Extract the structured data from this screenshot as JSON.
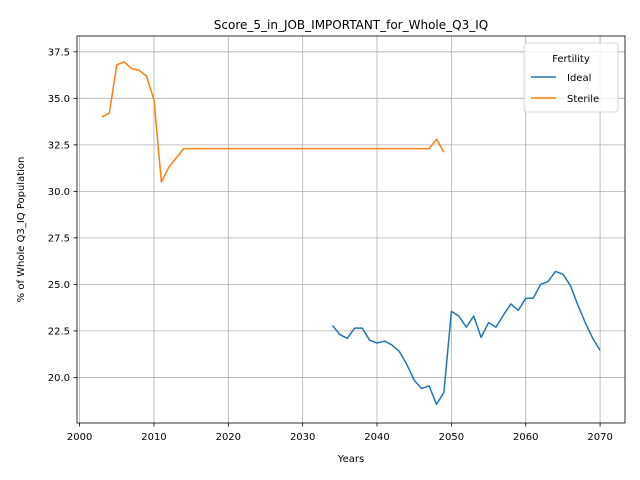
{
  "chart_data": {
    "type": "line",
    "title": "Score_5_in_JOB_IMPORTANT_for_Whole_Q3_IQ",
    "xlabel": "Years",
    "ylabel": "% of Whole Q3_IQ Population",
    "xlim": [
      1999.65,
      2073.35
    ],
    "ylim": [
      17.55,
      38.35
    ],
    "xticks": [
      2000,
      2010,
      2020,
      2030,
      2040,
      2050,
      2060,
      2070
    ],
    "xtick_labels": [
      "2000",
      "2010",
      "2020",
      "2030",
      "2040",
      "2050",
      "2060",
      "2070"
    ],
    "yticks": [
      20.0,
      22.5,
      25.0,
      27.5,
      30.0,
      32.5,
      35.0,
      37.5
    ],
    "ytick_labels": [
      "20.0",
      "22.5",
      "25.0",
      "27.5",
      "30.0",
      "32.5",
      "35.0",
      "37.5"
    ],
    "grid": true,
    "legend": {
      "title": "Fertility",
      "placement": "top-right"
    },
    "series": [
      {
        "name": "Ideal",
        "color": "#1f77b4",
        "x": [
          2034,
          2035,
          2036,
          2037,
          2038,
          2039,
          2040,
          2041,
          2042,
          2043,
          2044,
          2045,
          2046,
          2047,
          2048,
          2049,
          2050,
          2051,
          2052,
          2053,
          2054,
          2055,
          2056,
          2057,
          2058,
          2059,
          2060,
          2061,
          2062,
          2063,
          2064,
          2065,
          2066,
          2067,
          2068,
          2069,
          2070
        ],
        "y": [
          22.8,
          22.3,
          22.1,
          22.65,
          22.65,
          22.0,
          21.85,
          21.95,
          21.75,
          21.4,
          20.7,
          19.85,
          19.4,
          19.55,
          18.55,
          19.2,
          23.55,
          23.3,
          22.7,
          23.3,
          22.15,
          22.95,
          22.7,
          23.35,
          23.95,
          23.6,
          24.25,
          24.25,
          25.0,
          25.15,
          25.7,
          25.55,
          24.95,
          23.9,
          22.95,
          22.1,
          21.45
        ]
      },
      {
        "name": "Sterile",
        "color": "#ff7f0e",
        "x": [
          2003,
          2004,
          2005,
          2006,
          2007,
          2008,
          2009,
          2010,
          2011,
          2012,
          2013,
          2014,
          2015,
          2020,
          2030,
          2040,
          2046,
          2047,
          2048,
          2049
        ],
        "y": [
          34.0,
          34.2,
          36.8,
          36.95,
          36.6,
          36.5,
          36.2,
          34.9,
          30.5,
          31.3,
          31.8,
          32.3,
          32.3,
          32.3,
          32.3,
          32.3,
          32.3,
          32.3,
          32.8,
          32.1
        ]
      }
    ]
  }
}
